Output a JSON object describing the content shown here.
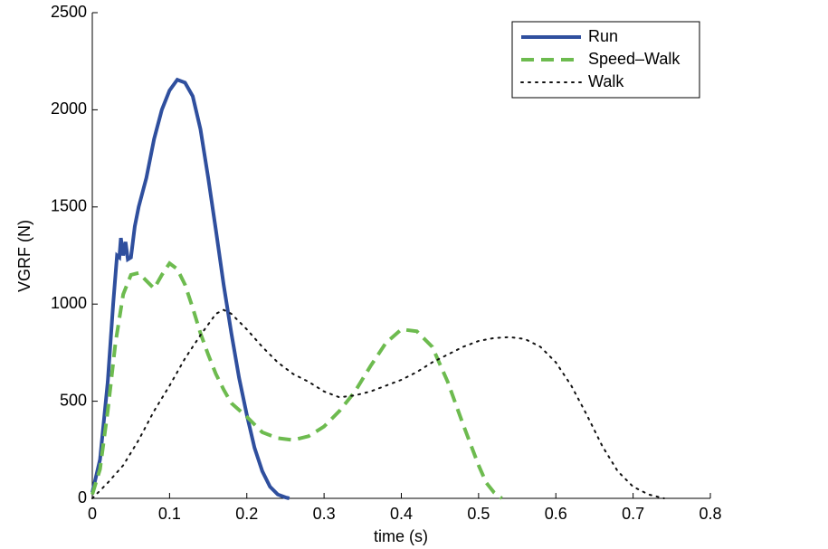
{
  "chart_data": {
    "type": "line",
    "xlabel": "time (s)",
    "ylabel": "VGRF (N)",
    "xlim": [
      0,
      0.8
    ],
    "xticks": [
      0,
      0.1,
      0.2,
      0.3,
      0.4,
      0.5,
      0.6,
      0.7,
      0.8
    ],
    "ylim": [
      0,
      2500
    ],
    "yticks": [
      0,
      500,
      1000,
      1500,
      2000,
      2500
    ],
    "legend": "upper right",
    "series": [
      {
        "name": "Run",
        "color": "#2f4f9e",
        "dash": "solid",
        "x": [
          0,
          0.01,
          0.02,
          0.027,
          0.032,
          0.035,
          0.037,
          0.04,
          0.043,
          0.046,
          0.05,
          0.055,
          0.06,
          0.07,
          0.08,
          0.09,
          0.1,
          0.11,
          0.12,
          0.13,
          0.14,
          0.15,
          0.16,
          0.17,
          0.18,
          0.19,
          0.2,
          0.21,
          0.22,
          0.23,
          0.24,
          0.25,
          0.255
        ],
        "values": [
          30,
          200,
          600,
          1000,
          1250,
          1240,
          1340,
          1250,
          1320,
          1230,
          1240,
          1400,
          1500,
          1650,
          1850,
          2000,
          2100,
          2155,
          2140,
          2070,
          1900,
          1650,
          1380,
          1100,
          850,
          620,
          430,
          260,
          140,
          60,
          20,
          5,
          0
        ]
      },
      {
        "name": "Speed–Walk",
        "color": "#6dbb4f",
        "dash": "dashed",
        "x": [
          0,
          0.01,
          0.02,
          0.03,
          0.04,
          0.05,
          0.06,
          0.07,
          0.08,
          0.09,
          0.1,
          0.11,
          0.12,
          0.13,
          0.14,
          0.15,
          0.16,
          0.17,
          0.18,
          0.2,
          0.22,
          0.24,
          0.26,
          0.28,
          0.3,
          0.32,
          0.34,
          0.36,
          0.38,
          0.4,
          0.42,
          0.44,
          0.46,
          0.48,
          0.5,
          0.51,
          0.52,
          0.53
        ],
        "values": [
          20,
          150,
          450,
          800,
          1050,
          1150,
          1160,
          1120,
          1080,
          1150,
          1210,
          1180,
          1100,
          980,
          850,
          740,
          640,
          560,
          490,
          420,
          340,
          310,
          300,
          320,
          370,
          450,
          550,
          680,
          800,
          870,
          860,
          780,
          600,
          380,
          170,
          80,
          30,
          0
        ]
      },
      {
        "name": "Walk",
        "color": "#111111",
        "dash": "dotted",
        "x": [
          0,
          0.02,
          0.04,
          0.06,
          0.08,
          0.1,
          0.12,
          0.14,
          0.16,
          0.17,
          0.18,
          0.2,
          0.22,
          0.24,
          0.26,
          0.28,
          0.3,
          0.32,
          0.34,
          0.36,
          0.38,
          0.4,
          0.42,
          0.44,
          0.46,
          0.48,
          0.5,
          0.52,
          0.54,
          0.56,
          0.58,
          0.6,
          0.62,
          0.64,
          0.66,
          0.68,
          0.7,
          0.72,
          0.74
        ],
        "values": [
          0,
          80,
          170,
          300,
          450,
          580,
          720,
          840,
          950,
          970,
          950,
          870,
          780,
          700,
          640,
          600,
          550,
          520,
          530,
          550,
          580,
          610,
          650,
          700,
          740,
          780,
          810,
          825,
          830,
          820,
          780,
          700,
          580,
          430,
          270,
          140,
          60,
          20,
          0
        ]
      }
    ]
  }
}
